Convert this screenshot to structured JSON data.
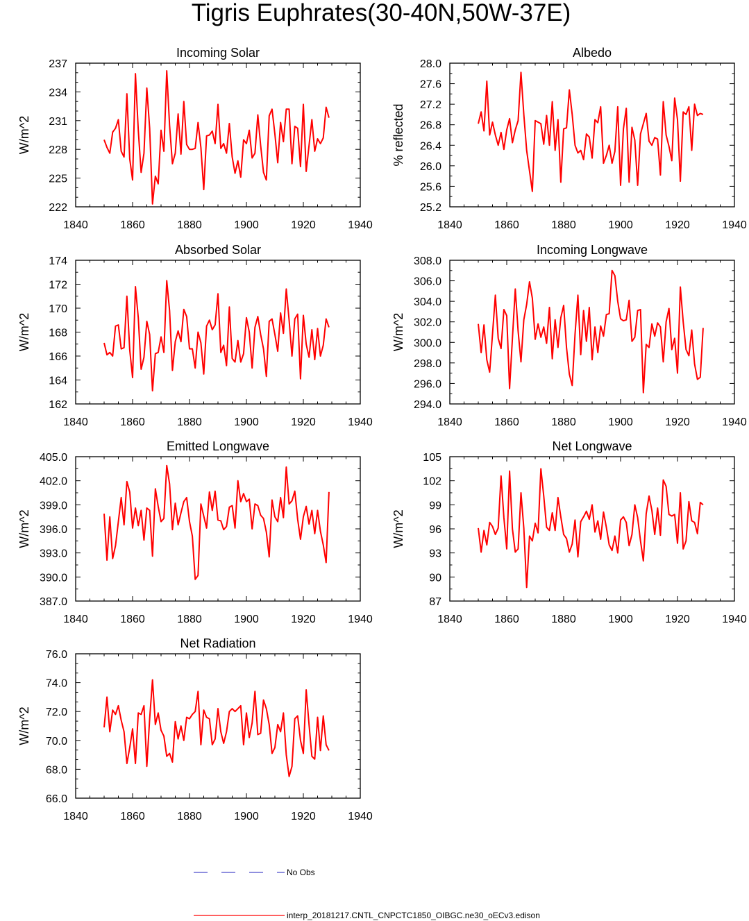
{
  "page": {
    "title": "Tigris Euphrates(30-40N,50W-37E)"
  },
  "legend": {
    "no_obs_label": "No Obs",
    "no_obs_color": "#1f1fbf",
    "model_label": "interp_20181217.CNTL_CNPCTC1850_OIBGC.ne30_oECv3.edison",
    "model_color": "#ff0000"
  },
  "chart_data": [
    {
      "type": "line",
      "title": "Incoming Solar",
      "ylabel": "W/m^2",
      "xlim": [
        1840,
        1940
      ],
      "ylim": [
        222,
        237
      ],
      "xticks": [
        "1840",
        "1860",
        "1880",
        "1900",
        "1920",
        "1940"
      ],
      "yticks": [
        "222",
        "225",
        "228",
        "231",
        "234",
        "237"
      ],
      "x_start": 1850,
      "series": [
        {
          "color": "#ff0000",
          "values": [
            229.0,
            228.2,
            227.6,
            229.8,
            230.2,
            231.1,
            227.8,
            227.2,
            233.8,
            227.0,
            224.8,
            235.9,
            230.0,
            225.6,
            227.6,
            234.4,
            230.2,
            222.3,
            225.2,
            224.4,
            230.0,
            227.8,
            236.2,
            230.5,
            226.5,
            227.6,
            231.7,
            227.5,
            233.0,
            228.5,
            228.0,
            228.0,
            228.1,
            230.8,
            228.2,
            223.8,
            229.4,
            229.5,
            229.9,
            228.6,
            232.7,
            228.1,
            228.6,
            227.6,
            230.7,
            227.2,
            225.5,
            226.8,
            225.1,
            229.0,
            228.6,
            230.0,
            227.1,
            227.6,
            231.6,
            228.4,
            225.6,
            224.8,
            231.5,
            232.2,
            229.6,
            226.6,
            230.8,
            228.8,
            232.2,
            232.2,
            226.5,
            230.4,
            230.2,
            226.2,
            232.7,
            225.7,
            228.4,
            231.1,
            227.8,
            229.1,
            228.6,
            229.2,
            232.4,
            231.3
          ]
        }
      ]
    },
    {
      "type": "line",
      "title": "Albedo",
      "ylabel": "% reflected",
      "xlim": [
        1840,
        1940
      ],
      "ylim": [
        25.2,
        28.0
      ],
      "xticks": [
        "1840",
        "1860",
        "1880",
        "1900",
        "1920",
        "1940"
      ],
      "yticks": [
        "25.2",
        "25.6",
        "26.0",
        "26.4",
        "26.8",
        "27.2",
        "27.6",
        "28.0"
      ],
      "x_start": 1850,
      "series": [
        {
          "color": "#ff0000",
          "values": [
            26.82,
            27.05,
            26.68,
            27.65,
            26.6,
            26.85,
            26.6,
            26.4,
            26.65,
            26.32,
            26.7,
            26.92,
            26.45,
            26.7,
            26.88,
            27.82,
            27.0,
            26.3,
            25.9,
            25.5,
            26.88,
            26.85,
            26.82,
            26.42,
            26.98,
            26.4,
            27.25,
            26.3,
            26.9,
            25.68,
            26.72,
            26.74,
            27.48,
            27.0,
            26.4,
            26.25,
            26.3,
            26.12,
            26.62,
            26.56,
            26.15,
            26.9,
            26.84,
            27.15,
            26.05,
            26.2,
            26.4,
            26.05,
            26.28,
            27.15,
            25.62,
            26.72,
            27.12,
            25.68,
            26.75,
            26.5,
            25.62,
            26.62,
            26.82,
            27.02,
            26.48,
            26.4,
            26.55,
            26.52,
            25.82,
            27.25,
            26.6,
            26.38,
            26.1,
            27.32,
            26.9,
            25.7,
            27.05,
            27.0,
            27.15,
            26.3,
            27.2,
            26.98,
            27.02,
            27.0
          ]
        }
      ]
    },
    {
      "type": "line",
      "title": "Absorbed Solar",
      "ylabel": "W/m^2",
      "xlim": [
        1840,
        1940
      ],
      "ylim": [
        162,
        174
      ],
      "xticks": [
        "1840",
        "1860",
        "1880",
        "1900",
        "1920",
        "1940"
      ],
      "yticks": [
        "162",
        "164",
        "166",
        "168",
        "170",
        "172",
        "174"
      ],
      "x_start": 1850,
      "series": [
        {
          "color": "#ff0000",
          "values": [
            167.1,
            166.1,
            166.3,
            166.0,
            168.5,
            168.6,
            166.6,
            166.7,
            171.0,
            166.5,
            164.2,
            171.8,
            169.2,
            164.9,
            165.9,
            168.9,
            167.8,
            163.1,
            166.2,
            166.3,
            167.6,
            166.3,
            172.3,
            169.8,
            164.8,
            167.2,
            168.1,
            167.2,
            169.9,
            169.3,
            166.6,
            166.6,
            165.0,
            168.0,
            167.1,
            164.5,
            168.5,
            169.0,
            168.2,
            168.6,
            171.2,
            166.3,
            166.9,
            165.2,
            170.1,
            165.8,
            165.5,
            167.3,
            165.5,
            166.2,
            169.2,
            168.0,
            165.0,
            168.4,
            169.3,
            167.8,
            166.6,
            164.3,
            168.9,
            169.1,
            167.8,
            166.4,
            169.6,
            167.9,
            171.6,
            169.0,
            166.0,
            169.1,
            169.5,
            164.1,
            169.4,
            167.0,
            165.9,
            168.2,
            165.7,
            168.3,
            166.0,
            166.9,
            169.1,
            168.4
          ]
        }
      ]
    },
    {
      "type": "line",
      "title": "Incoming Longwave",
      "ylabel": "W/m^2",
      "xlim": [
        1840,
        1940
      ],
      "ylim": [
        294.0,
        308.0
      ],
      "xticks": [
        "1840",
        "1860",
        "1880",
        "1900",
        "1920",
        "1940"
      ],
      "yticks": [
        "294.0",
        "296.0",
        "298.0",
        "300.0",
        "302.0",
        "304.0",
        "306.0",
        "308.0"
      ],
      "x_start": 1850,
      "series": [
        {
          "color": "#ff0000",
          "values": [
            301.8,
            299.0,
            301.7,
            298.3,
            297.1,
            300.8,
            304.6,
            300.4,
            299.4,
            303.2,
            302.6,
            295.5,
            300.4,
            305.2,
            301.1,
            298.1,
            302.2,
            303.7,
            305.9,
            304.3,
            300.3,
            301.8,
            300.5,
            301.5,
            299.9,
            303.4,
            298.4,
            302.2,
            299.5,
            302.4,
            303.6,
            299.5,
            296.9,
            295.8,
            300.8,
            304.6,
            298.8,
            303.1,
            300.1,
            303.4,
            298.3,
            301.5,
            299.0,
            301.6,
            300.6,
            302.7,
            302.8,
            307.0,
            306.5,
            304.0,
            302.3,
            302.1,
            302.2,
            304.1,
            300.1,
            300.5,
            303.1,
            303.2,
            295.1,
            299.8,
            299.5,
            301.8,
            300.6,
            301.9,
            301.5,
            298.1,
            302.0,
            303.3,
            299.3,
            300.4,
            297.0,
            305.4,
            302.0,
            299.3,
            298.7,
            301.2,
            297.9,
            296.4,
            296.6,
            301.4
          ]
        }
      ]
    },
    {
      "type": "line",
      "title": "Emitted Longwave",
      "ylabel": "W/m^2",
      "xlim": [
        1840,
        1940
      ],
      "ylim": [
        387.0,
        405.0
      ],
      "xticks": [
        "1840",
        "1860",
        "1880",
        "1900",
        "1920",
        "1940"
      ],
      "yticks": [
        "387.0",
        "390.0",
        "393.0",
        "396.0",
        "399.0",
        "402.0",
        "405.0"
      ],
      "x_start": 1850,
      "series": [
        {
          "color": "#ff0000",
          "values": [
            397.9,
            392.1,
            397.5,
            392.3,
            393.9,
            396.9,
            399.9,
            396.5,
            401.9,
            400.6,
            396.1,
            398.6,
            396.4,
            398.3,
            394.6,
            398.6,
            398.3,
            392.6,
            401.0,
            398.8,
            396.9,
            397.3,
            403.9,
            401.6,
            395.9,
            399.2,
            396.5,
            398.0,
            399.4,
            399.9,
            396.9,
            395.1,
            389.7,
            390.2,
            399.1,
            397.6,
            396.1,
            400.6,
            398.3,
            400.7,
            397.1,
            397.0,
            395.9,
            396.3,
            398.7,
            398.9,
            396.1,
            402.0,
            399.4,
            400.4,
            399.4,
            399.7,
            396.0,
            399.1,
            398.9,
            397.7,
            397.3,
            395.6,
            392.5,
            399.6,
            397.5,
            396.9,
            399.9,
            397.4,
            403.7,
            399.1,
            399.5,
            400.7,
            397.2,
            394.7,
            397.5,
            398.8,
            396.6,
            398.3,
            395.4,
            398.3,
            395.7,
            394.0,
            391.8,
            400.6
          ]
        }
      ]
    },
    {
      "type": "line",
      "title": "Net Longwave",
      "ylabel": "W/m^2",
      "xlim": [
        1840,
        1940
      ],
      "ylim": [
        87,
        105
      ],
      "xticks": [
        "1840",
        "1860",
        "1880",
        "1900",
        "1920",
        "1940"
      ],
      "yticks": [
        "87",
        "90",
        "93",
        "96",
        "99",
        "102",
        "105"
      ],
      "x_start": 1850,
      "series": [
        {
          "color": "#ff0000",
          "values": [
            96.1,
            93.1,
            95.8,
            94.0,
            96.8,
            96.3,
            95.3,
            96.1,
            102.6,
            97.4,
            93.5,
            103.2,
            96.0,
            93.1,
            93.5,
            100.5,
            96.1,
            88.7,
            95.1,
            94.5,
            96.7,
            95.5,
            103.5,
            100.1,
            96.2,
            95.8,
            98.0,
            95.8,
            99.9,
            97.5,
            95.3,
            94.8,
            93.1,
            94.1,
            97.1,
            92.5,
            96.9,
            97.5,
            98.2,
            97.2,
            99.0,
            95.6,
            97.0,
            94.7,
            98.1,
            96.2,
            94.0,
            93.3,
            95.1,
            93.0,
            97.1,
            97.5,
            96.8,
            93.9,
            95.3,
            99.0,
            97.4,
            94.5,
            92.0,
            97.9,
            100.1,
            98.3,
            95.3,
            98.6,
            95.2,
            102.1,
            101.3,
            97.8,
            97.6,
            97.8,
            94.2,
            100.5,
            93.5,
            94.5,
            99.4,
            97.0,
            96.8,
            95.4,
            99.3,
            99.0
          ]
        }
      ]
    },
    {
      "type": "line",
      "title": "Net Radiation",
      "ylabel": "W/m^2",
      "xlim": [
        1840,
        1940
      ],
      "ylim": [
        66.0,
        76.0
      ],
      "xticks": [
        "1840",
        "1860",
        "1880",
        "1900",
        "1920",
        "1940"
      ],
      "yticks": [
        "66.0",
        "68.0",
        "70.0",
        "72.0",
        "74.0",
        "76.0"
      ],
      "x_start": 1850,
      "series": [
        {
          "color": "#ff0000",
          "values": [
            70.9,
            73.0,
            70.6,
            72.1,
            71.8,
            72.4,
            71.4,
            70.6,
            68.4,
            69.5,
            70.8,
            68.4,
            71.9,
            71.8,
            72.4,
            68.2,
            71.5,
            74.2,
            71.1,
            71.9,
            70.7,
            70.3,
            68.9,
            69.1,
            68.5,
            71.3,
            70.1,
            71.0,
            70.0,
            71.6,
            71.5,
            71.8,
            72.0,
            73.4,
            69.7,
            72.1,
            71.6,
            71.5,
            69.7,
            70.1,
            72.2,
            70.6,
            69.8,
            70.6,
            72.0,
            72.2,
            72.0,
            72.2,
            72.4,
            69.7,
            71.9,
            70.2,
            71.2,
            73.4,
            70.4,
            70.5,
            72.8,
            72.2,
            71.1,
            69.1,
            69.5,
            71.1,
            70.6,
            71.9,
            69.0,
            67.5,
            68.2,
            71.5,
            71.7,
            70.0,
            69.1,
            73.5,
            71.1,
            68.9,
            68.7,
            71.6,
            69.3,
            71.7,
            69.7,
            69.3
          ]
        }
      ]
    }
  ]
}
